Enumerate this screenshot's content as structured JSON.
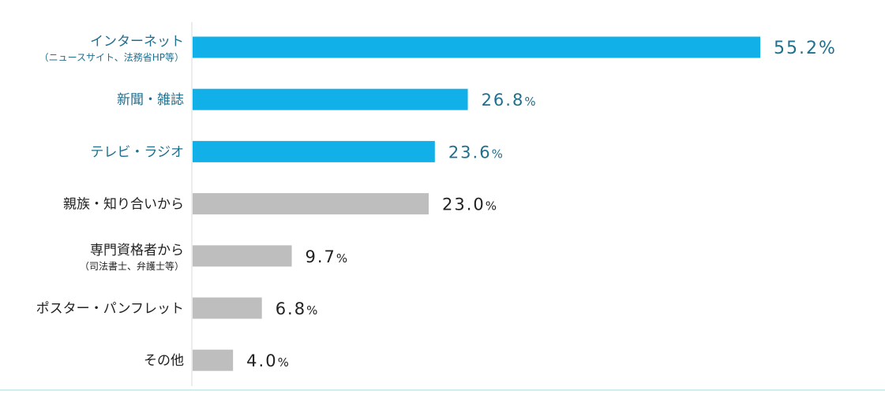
{
  "chart_data": {
    "type": "bar",
    "orientation": "horizontal",
    "title": "",
    "xlabel": "",
    "ylabel": "",
    "categories": [
      "インターネット",
      "新聞・雑誌",
      "テレビ・ラジオ",
      "親族・知り合いから",
      "専門資格者から",
      "ポスター・パンフレット",
      "その他"
    ],
    "sublabels": [
      "（ニュースサイト、法務省HP等）",
      "",
      "",
      "",
      "（司法書士、弁護士等）",
      "",
      ""
    ],
    "values": [
      55.2,
      26.8,
      23.6,
      23.0,
      9.7,
      6.8,
      4.0
    ],
    "value_labels": [
      "55.2",
      "26.8",
      "23.6",
      "23.0",
      "9.7",
      "6.8",
      "4.0"
    ],
    "unit": "%",
    "highlighted": [
      true,
      true,
      true,
      false,
      false,
      false,
      false
    ],
    "xlim": [
      0,
      55.2
    ],
    "grid": false,
    "legend": "none",
    "colors": {
      "highlight_bar": "#12b0e8",
      "highlight_text": "#1f6f8f",
      "normal_bar": "#bebebe",
      "normal_text": "#222222",
      "axis": "#d8d8d8",
      "bottom_rule": "#cfeeee"
    }
  }
}
